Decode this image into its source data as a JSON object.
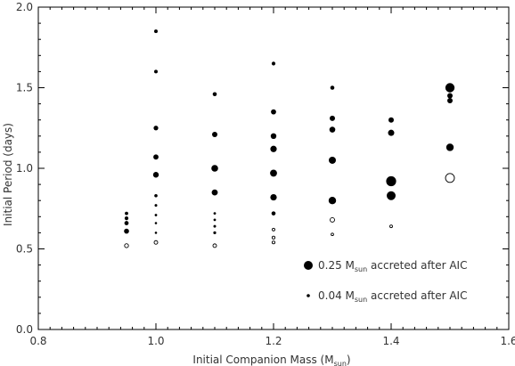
{
  "chart_data": {
    "type": "scatter",
    "xlabel": {
      "main": "Initial Companion Mass (M",
      "sub": "sun",
      "end": ")"
    },
    "ylabel": "Initial Period  (days)",
    "xlim": [
      0.8,
      1.6
    ],
    "ylim": [
      0.0,
      2.0
    ],
    "xticks": [
      "0.8",
      "1.0",
      "1.2",
      "1.4",
      "1.6"
    ],
    "yticks": [
      "0.0",
      "0.5",
      "1.0",
      "1.5",
      "2.0"
    ],
    "legend": {
      "placement": "bottom-right",
      "entries": [
        {
          "prefix": "0.25 M",
          "sub": "sun",
          "suffix": " accreted after AIC",
          "marker": "filled-circle-large"
        },
        {
          "prefix": "0.04 M",
          "sub": "sun",
          "suffix": " accreted after AIC",
          "marker": "filled-circle-small"
        }
      ]
    },
    "points": [
      {
        "x": 0.95,
        "y": 0.72,
        "r": 1.9,
        "filled": true
      },
      {
        "x": 0.95,
        "y": 0.69,
        "r": 2.1,
        "filled": true
      },
      {
        "x": 0.95,
        "y": 0.66,
        "r": 2.4,
        "filled": true
      },
      {
        "x": 0.95,
        "y": 0.61,
        "r": 2.8,
        "filled": true
      },
      {
        "x": 0.95,
        "y": 0.52,
        "r": 2.2,
        "filled": false
      },
      {
        "x": 1.0,
        "y": 1.85,
        "r": 2.0,
        "filled": true
      },
      {
        "x": 1.0,
        "y": 1.6,
        "r": 2.0,
        "filled": true
      },
      {
        "x": 1.0,
        "y": 1.25,
        "r": 2.6,
        "filled": true
      },
      {
        "x": 1.0,
        "y": 1.07,
        "r": 2.9,
        "filled": true
      },
      {
        "x": 1.0,
        "y": 0.96,
        "r": 3.2,
        "filled": true
      },
      {
        "x": 1.0,
        "y": 0.83,
        "r": 1.8,
        "filled": true
      },
      {
        "x": 1.0,
        "y": 0.77,
        "r": 1.5,
        "filled": true
      },
      {
        "x": 1.0,
        "y": 0.71,
        "r": 1.4,
        "filled": true
      },
      {
        "x": 1.0,
        "y": 0.66,
        "r": 1.3,
        "filled": true
      },
      {
        "x": 1.0,
        "y": 0.6,
        "r": 1.3,
        "filled": true
      },
      {
        "x": 1.0,
        "y": 0.54,
        "r": 2.0,
        "filled": false
      },
      {
        "x": 1.1,
        "y": 1.46,
        "r": 2.3,
        "filled": true
      },
      {
        "x": 1.1,
        "y": 1.21,
        "r": 3.0,
        "filled": true
      },
      {
        "x": 1.1,
        "y": 1.0,
        "r": 3.8,
        "filled": true
      },
      {
        "x": 1.1,
        "y": 0.85,
        "r": 3.4,
        "filled": true
      },
      {
        "x": 1.1,
        "y": 0.72,
        "r": 1.4,
        "filled": true
      },
      {
        "x": 1.1,
        "y": 0.68,
        "r": 1.4,
        "filled": true
      },
      {
        "x": 1.1,
        "y": 0.64,
        "r": 1.5,
        "filled": true
      },
      {
        "x": 1.1,
        "y": 0.6,
        "r": 1.6,
        "filled": true
      },
      {
        "x": 1.1,
        "y": 0.52,
        "r": 2.0,
        "filled": false
      },
      {
        "x": 1.2,
        "y": 1.65,
        "r": 2.1,
        "filled": true
      },
      {
        "x": 1.2,
        "y": 1.35,
        "r": 2.9,
        "filled": true
      },
      {
        "x": 1.2,
        "y": 1.2,
        "r": 3.2,
        "filled": true
      },
      {
        "x": 1.2,
        "y": 1.12,
        "r": 3.6,
        "filled": true
      },
      {
        "x": 1.2,
        "y": 0.97,
        "r": 3.9,
        "filled": true
      },
      {
        "x": 1.2,
        "y": 0.82,
        "r": 3.6,
        "filled": true
      },
      {
        "x": 1.2,
        "y": 0.72,
        "r": 2.3,
        "filled": true
      },
      {
        "x": 1.2,
        "y": 0.62,
        "r": 1.5,
        "filled": false
      },
      {
        "x": 1.2,
        "y": 0.57,
        "r": 1.6,
        "filled": false
      },
      {
        "x": 1.2,
        "y": 0.54,
        "r": 1.6,
        "filled": false
      },
      {
        "x": 1.3,
        "y": 1.5,
        "r": 2.3,
        "filled": true
      },
      {
        "x": 1.3,
        "y": 1.31,
        "r": 3.0,
        "filled": true
      },
      {
        "x": 1.3,
        "y": 1.24,
        "r": 3.3,
        "filled": true
      },
      {
        "x": 1.3,
        "y": 1.05,
        "r": 4.0,
        "filled": true
      },
      {
        "x": 1.3,
        "y": 0.8,
        "r": 4.2,
        "filled": true
      },
      {
        "x": 1.3,
        "y": 0.68,
        "r": 2.5,
        "filled": false
      },
      {
        "x": 1.3,
        "y": 0.59,
        "r": 1.4,
        "filled": false
      },
      {
        "x": 1.4,
        "y": 1.3,
        "r": 3.0,
        "filled": true
      },
      {
        "x": 1.4,
        "y": 1.22,
        "r": 3.5,
        "filled": true
      },
      {
        "x": 1.4,
        "y": 0.92,
        "r": 5.6,
        "filled": true
      },
      {
        "x": 1.4,
        "y": 0.83,
        "r": 5.0,
        "filled": true
      },
      {
        "x": 1.4,
        "y": 0.64,
        "r": 1.5,
        "filled": false
      },
      {
        "x": 1.5,
        "y": 1.5,
        "r": 5.2,
        "filled": true
      },
      {
        "x": 1.5,
        "y": 1.45,
        "r": 3.0,
        "filled": true
      },
      {
        "x": 1.5,
        "y": 1.42,
        "r": 3.0,
        "filled": true
      },
      {
        "x": 1.5,
        "y": 1.13,
        "r": 4.2,
        "filled": true
      },
      {
        "x": 1.5,
        "y": 0.94,
        "r": 5.0,
        "filled": false
      }
    ]
  }
}
